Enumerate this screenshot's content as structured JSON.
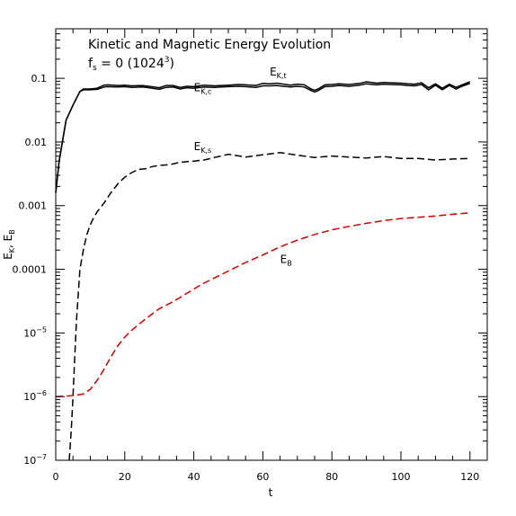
{
  "chart_data": {
    "type": "line",
    "title": "Kinetic and Magnetic Energy Evolution",
    "subtitle": {
      "prefix": "f",
      "sub": "s",
      "rest": " = 0 (1024",
      "sup": "3",
      "close": ")"
    },
    "xlabel": "t",
    "ylabel": {
      "e1": "E",
      "s1": "K",
      "sep": ", ",
      "e2": "E",
      "s2": "B"
    },
    "xlim": [
      0,
      125
    ],
    "ylim": [
      1e-07,
      0.6
    ],
    "yscale": "log",
    "grid": false,
    "x_ticks": [
      {
        "value": 0,
        "label": "0"
      },
      {
        "value": 20,
        "label": "20"
      },
      {
        "value": 40,
        "label": "40"
      },
      {
        "value": 60,
        "label": "60"
      },
      {
        "value": 80,
        "label": "80"
      },
      {
        "value": 100,
        "label": "100"
      },
      {
        "value": 120,
        "label": "120"
      }
    ],
    "y_ticks": [
      {
        "value": 0.1,
        "label": "0.1",
        "base": "",
        "exp": ""
      },
      {
        "value": 0.01,
        "label": "0.01",
        "base": "",
        "exp": ""
      },
      {
        "value": 0.001,
        "label": "0.001",
        "base": "",
        "exp": ""
      },
      {
        "value": 0.0001,
        "label": "0.0001",
        "base": "",
        "exp": ""
      },
      {
        "value": 1e-05,
        "label": "",
        "base": "10",
        "exp": "−5"
      },
      {
        "value": 1e-06,
        "label": "",
        "base": "10",
        "exp": "−6"
      },
      {
        "value": 1e-07,
        "label": "",
        "base": "10",
        "exp": "−7"
      }
    ],
    "series": [
      {
        "key": "ekt",
        "label": {
          "main": "E",
          "sub": "K,t"
        },
        "label_at": {
          "x": 62,
          "y": 0.11
        },
        "color": "#000000",
        "style": "solid",
        "x": [
          0,
          1,
          3,
          5,
          7,
          8,
          10,
          12,
          14,
          15,
          18,
          20,
          22,
          25,
          27,
          30,
          32,
          34,
          36,
          38,
          40,
          43,
          46,
          48,
          50,
          53,
          55,
          58,
          60,
          62,
          64,
          66,
          68,
          70,
          72,
          74,
          75,
          76,
          78,
          80,
          82,
          85,
          88,
          90,
          93,
          95,
          97,
          100,
          102,
          104,
          106,
          108,
          110,
          112,
          114,
          116,
          118,
          120
        ],
        "y": [
          0.0016,
          0.005,
          0.022,
          0.038,
          0.062,
          0.068,
          0.068,
          0.07,
          0.078,
          0.079,
          0.077,
          0.078,
          0.076,
          0.077,
          0.075,
          0.071,
          0.077,
          0.077,
          0.072,
          0.075,
          0.074,
          0.078,
          0.076,
          0.077,
          0.078,
          0.08,
          0.079,
          0.077,
          0.083,
          0.082,
          0.084,
          0.081,
          0.078,
          0.081,
          0.079,
          0.068,
          0.065,
          0.068,
          0.079,
          0.08,
          0.082,
          0.08,
          0.083,
          0.088,
          0.084,
          0.086,
          0.085,
          0.084,
          0.082,
          0.081,
          0.085,
          0.071,
          0.082,
          0.07,
          0.081,
          0.072,
          0.08,
          0.088
        ]
      },
      {
        "key": "ekc",
        "label": {
          "main": "E",
          "sub": "K,c"
        },
        "label_at": {
          "x": 40,
          "y": 0.063
        },
        "color": "#000000",
        "style": "solid",
        "x": [
          0,
          1,
          3,
          5,
          7,
          8,
          10,
          12,
          14,
          15,
          18,
          20,
          22,
          25,
          27,
          30,
          32,
          34,
          36,
          38,
          40,
          43,
          46,
          48,
          50,
          53,
          55,
          58,
          60,
          62,
          64,
          66,
          68,
          70,
          72,
          74,
          75,
          76,
          78,
          80,
          82,
          85,
          88,
          90,
          93,
          95,
          97,
          100,
          102,
          104,
          106,
          108,
          110,
          112,
          114,
          116,
          118,
          120
        ],
        "y": [
          0.0016,
          0.005,
          0.022,
          0.038,
          0.062,
          0.066,
          0.066,
          0.067,
          0.073,
          0.074,
          0.073,
          0.074,
          0.072,
          0.073,
          0.071,
          0.067,
          0.072,
          0.073,
          0.068,
          0.071,
          0.07,
          0.073,
          0.072,
          0.073,
          0.074,
          0.075,
          0.074,
          0.072,
          0.076,
          0.076,
          0.077,
          0.075,
          0.073,
          0.075,
          0.073,
          0.064,
          0.061,
          0.064,
          0.074,
          0.075,
          0.077,
          0.075,
          0.078,
          0.082,
          0.079,
          0.081,
          0.08,
          0.079,
          0.077,
          0.076,
          0.08,
          0.066,
          0.078,
          0.066,
          0.077,
          0.068,
          0.076,
          0.083
        ]
      },
      {
        "key": "eks",
        "label": {
          "main": "E",
          "sub": "K,s"
        },
        "label_at": {
          "x": 40,
          "y": 0.0075
        },
        "color": "#000000",
        "style": "dashed",
        "x": [
          3.9,
          4.5,
          5,
          5.5,
          6,
          7,
          8,
          9,
          10,
          11,
          12,
          14,
          16,
          18,
          20,
          22,
          24,
          26,
          28,
          30,
          33,
          36,
          40,
          43,
          46,
          50,
          55,
          60,
          65,
          70,
          75,
          80,
          85,
          90,
          95,
          100,
          105,
          110,
          115,
          120
        ],
        "y": [
          1e-07,
          3e-07,
          1e-06,
          4e-06,
          1.5e-05,
          0.0001,
          0.0002,
          0.00035,
          0.0005,
          0.00065,
          0.0008,
          0.0011,
          0.0016,
          0.0022,
          0.0028,
          0.0033,
          0.0037,
          0.0038,
          0.0041,
          0.0043,
          0.0044,
          0.0048,
          0.005,
          0.0052,
          0.0057,
          0.0064,
          0.0058,
          0.0063,
          0.0068,
          0.0062,
          0.0057,
          0.006,
          0.0058,
          0.0056,
          0.0059,
          0.0055,
          0.0055,
          0.0052,
          0.0054,
          0.0055
        ]
      },
      {
        "key": "eb",
        "label": {
          "main": "E",
          "sub": "B"
        },
        "label_at": {
          "x": 65,
          "y": 0.000125
        },
        "color": "#cc0000",
        "style": "dashed",
        "x": [
          0,
          3,
          6,
          8,
          10,
          12,
          14,
          16,
          18,
          20,
          22,
          25,
          28,
          30,
          33,
          36,
          40,
          43,
          46,
          50,
          55,
          60,
          65,
          70,
          75,
          80,
          85,
          90,
          95,
          100,
          105,
          110,
          115,
          120
        ],
        "y": [
          1e-06,
          1.02e-06,
          1.05e-06,
          1.1e-06,
          1.3e-06,
          1.8e-06,
          2.7e-06,
          4.2e-06,
          6.3e-06,
          8.6e-06,
          1.1e-05,
          1.5e-05,
          2e-05,
          2.4e-05,
          2.9e-05,
          3.6e-05,
          4.9e-05,
          6.1e-05,
          7.3e-05,
          9.4e-05,
          0.000128,
          0.000168,
          0.000225,
          0.000286,
          0.000352,
          0.000416,
          0.000472,
          0.000527,
          0.000582,
          0.000626,
          0.000655,
          0.000686,
          0.00073,
          0.00077
        ]
      }
    ]
  }
}
